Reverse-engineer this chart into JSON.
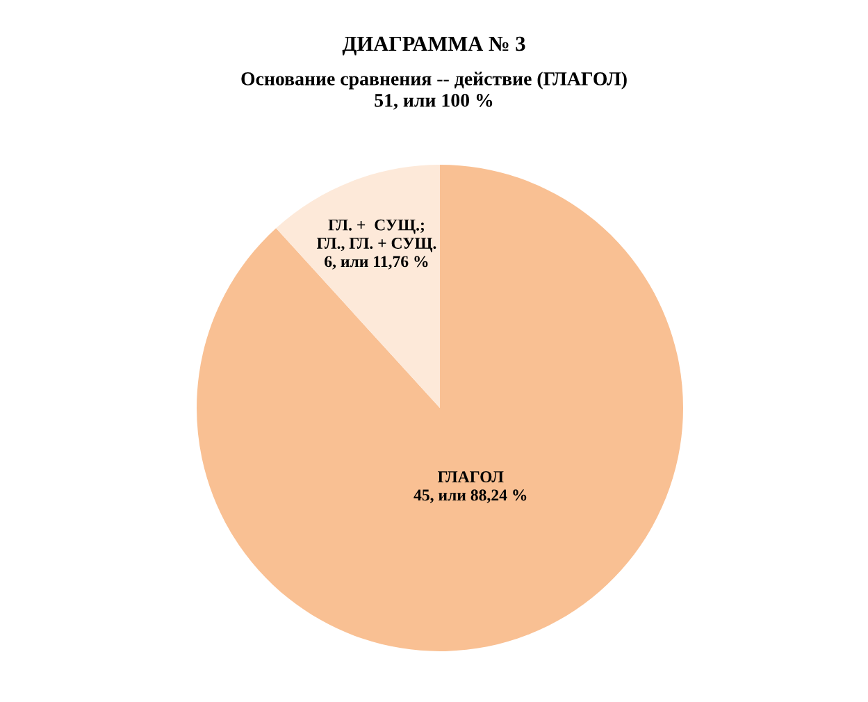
{
  "chart_data": {
    "type": "pie",
    "title": "ДИАГРАММА № 3",
    "subtitle": "Основание сравнения -- действие (ГЛАГОЛ)\n51, или 100 %",
    "categories": [
      "ГЛАГОЛ",
      "ГЛ. +  СУЩ.;\nГЛ., ГЛ. + СУЩ."
    ],
    "values": [
      45,
      6
    ],
    "value_labels": [
      "45, или 88,24 %",
      "6, или 11,76 %"
    ],
    "colors": [
      "#f9c093",
      "#fde9d9"
    ]
  }
}
